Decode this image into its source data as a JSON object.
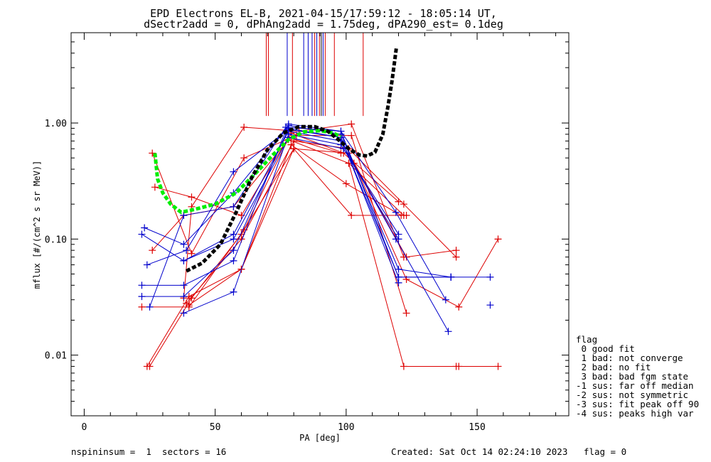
{
  "titles": {
    "line1": "EPD Electrons EL-B, 2021-04-15/17:59:12 - 18:05:14 UT,",
    "line2": "dSectr2add = 0, dPhAng2add = 1.75deg, dPA290_est=   0.1deg"
  },
  "footer": {
    "left": "nspininsum =  1  sectors = 16",
    "right": "Created: Sat Oct 14 02:24:10 2023   flag = 0"
  },
  "legend": {
    "title": "flag",
    "items": [
      " 0 good fit",
      " 1 bad: not converge",
      " 2 bad: no fit",
      " 3 bad: bad fgm state",
      "-1 sus: far off median",
      "-2 sus: not symmetric",
      "-3 sus: fit peak off 90",
      "-4 sus: peaks high var"
    ]
  },
  "chart_data": {
    "type": "line",
    "xlabel": "PA [deg]",
    "ylabel": "mflux [#/(cm^2 s sr MeV)]",
    "xlim": [
      -5,
      185
    ],
    "ylim": [
      0.003,
      6.0
    ],
    "yscale": "log",
    "xticks": [
      0,
      50,
      100,
      150
    ],
    "xtick_labels": [
      "0",
      "50",
      "100",
      "150"
    ],
    "yticks": [
      0.01,
      0.1,
      1.0
    ],
    "ytick_labels": [
      "0.01",
      "0.10",
      "1.00"
    ],
    "colors": {
      "red": "#dd0000",
      "blue": "#0000cc",
      "green": "#00ee00",
      "black": "#000000"
    },
    "series": [
      {
        "color": "red",
        "x": [
          27,
          41,
          60,
          78,
          98
        ],
        "y": [
          0.28,
          0.23,
          0.16,
          0.75,
          0.55
        ]
      },
      {
        "color": "red",
        "x": [
          26,
          38,
          57,
          78,
          101,
          122
        ],
        "y": [
          0.08,
          0.16,
          0.19,
          0.72,
          0.45,
          0.16
        ]
      },
      {
        "color": "red",
        "x": [
          24,
          40,
          60,
          79,
          100,
          121
        ],
        "y": [
          0.008,
          0.032,
          0.055,
          0.65,
          0.3,
          0.16
        ]
      },
      {
        "color": "red",
        "x": [
          25,
          41,
          60,
          80,
          102,
          123
        ],
        "y": [
          0.008,
          0.031,
          0.11,
          0.6,
          0.16,
          0.16
        ]
      },
      {
        "color": "red",
        "x": [
          22,
          40,
          61,
          79,
          99,
          120
        ],
        "y": [
          0.026,
          0.026,
          0.12,
          0.82,
          0.55,
          0.21
        ]
      },
      {
        "color": "red",
        "x": [
          26,
          41,
          61,
          81,
          102,
          123
        ],
        "y": [
          0.55,
          0.075,
          0.5,
          0.78,
          0.78,
          0.023
        ]
      },
      {
        "color": "red",
        "x": [
          38,
          41,
          61,
          82,
          102,
          122
        ],
        "y": [
          0.031,
          0.19,
          0.92,
          0.85,
          0.98,
          0.07
        ]
      },
      {
        "color": "red",
        "x": [
          39,
          60,
          80,
          101,
          122,
          142
        ],
        "y": [
          0.028,
          0.1,
          0.7,
          0.6,
          0.2,
          0.07
        ]
      },
      {
        "color": "red",
        "x": [
          40,
          60,
          80,
          101,
          123,
          142
        ],
        "y": [
          0.027,
          0.055,
          0.6,
          0.55,
          0.07,
          0.08
        ]
      },
      {
        "color": "red",
        "x": [
          101,
          122,
          143
        ],
        "y": [
          0.45,
          0.008,
          0.008
        ]
      },
      {
        "color": "red",
        "x": [
          103,
          123,
          143,
          158
        ],
        "y": [
          0.45,
          0.045,
          0.026,
          0.1
        ]
      },
      {
        "color": "red",
        "x": [
          142,
          158
        ],
        "y": [
          0.008,
          0.008
        ]
      },
      {
        "color": "blue",
        "x": [
          22,
          38,
          57,
          78,
          98,
          119,
          139
        ],
        "y": [
          0.11,
          0.065,
          0.11,
          0.85,
          0.7,
          0.1,
          0.016
        ]
      },
      {
        "color": "blue",
        "x": [
          23,
          38,
          57,
          78,
          98,
          120,
          140
        ],
        "y": [
          0.125,
          0.09,
          0.25,
          0.95,
          0.8,
          0.055,
          0.047
        ]
      },
      {
        "color": "blue",
        "x": [
          24,
          39,
          57,
          78,
          98,
          120
        ],
        "y": [
          0.06,
          0.08,
          0.38,
          0.88,
          0.75,
          0.042
        ]
      },
      {
        "color": "blue",
        "x": [
          25,
          38,
          57,
          77,
          98,
          120,
          140
        ],
        "y": [
          0.026,
          0.16,
          0.19,
          0.92,
          0.85,
          0.047,
          0.047
        ]
      },
      {
        "color": "blue",
        "x": [
          22,
          38,
          57,
          78,
          98,
          119,
          138
        ],
        "y": [
          0.04,
          0.04,
          0.065,
          0.98,
          0.85,
          0.17,
          0.03
        ]
      },
      {
        "color": "blue",
        "x": [
          22,
          38,
          57,
          78,
          98,
          120,
          140
        ],
        "y": [
          0.032,
          0.032,
          0.08,
          0.9,
          0.75,
          0.047,
          0.047
        ]
      },
      {
        "color": "blue",
        "x": [
          38,
          57,
          78,
          98,
          120
        ],
        "y": [
          0.023,
          0.035,
          0.8,
          0.65,
          0.11
        ]
      },
      {
        "color": "blue",
        "x": [
          38,
          57,
          78,
          99,
          120
        ],
        "y": [
          0.065,
          0.1,
          0.75,
          0.6,
          0.1
        ]
      },
      {
        "color": "blue",
        "x": [
          140,
          155
        ],
        "y": [
          0.047,
          0.047
        ]
      },
      {
        "color": "blue",
        "x": [
          155
        ],
        "y": [
          0.027
        ]
      }
    ],
    "fits": [
      {
        "color": "green",
        "x": [
          27,
          28,
          30,
          33,
          37,
          42,
          50,
          58,
          65,
          72,
          78,
          84,
          90,
          95,
          98
        ],
        "y": [
          0.55,
          0.33,
          0.25,
          0.2,
          0.17,
          0.18,
          0.2,
          0.25,
          0.36,
          0.53,
          0.72,
          0.84,
          0.86,
          0.82,
          0.76
        ]
      },
      {
        "color": "black",
        "x": [
          39,
          45,
          52,
          58,
          64,
          70,
          76,
          82,
          88,
          93,
          97,
          101,
          105,
          108,
          111,
          114,
          116,
          117.5,
          118.5,
          119.2
        ],
        "y": [
          0.053,
          0.062,
          0.09,
          0.17,
          0.34,
          0.59,
          0.82,
          0.93,
          0.93,
          0.85,
          0.72,
          0.6,
          0.53,
          0.52,
          0.56,
          0.8,
          1.4,
          2.3,
          3.4,
          4.5
        ]
      }
    ],
    "verticals": [
      {
        "color": "red",
        "x": 69.5
      },
      {
        "color": "red",
        "x": 70.3
      },
      {
        "color": "blue",
        "x": 77.5
      },
      {
        "color": "red",
        "x": 79.5
      },
      {
        "color": "blue",
        "x": 83.8
      },
      {
        "color": "blue",
        "x": 85.5
      },
      {
        "color": "blue",
        "x": 87.0
      },
      {
        "color": "red",
        "x": 88.0
      },
      {
        "color": "blue",
        "x": 88.8
      },
      {
        "color": "red",
        "x": 89.8
      },
      {
        "color": "black",
        "x": 90.5
      },
      {
        "color": "blue",
        "x": 91.2
      },
      {
        "color": "red",
        "x": 92.0
      },
      {
        "color": "red",
        "x": 95.5
      },
      {
        "color": "red",
        "x": 106.5
      }
    ]
  }
}
